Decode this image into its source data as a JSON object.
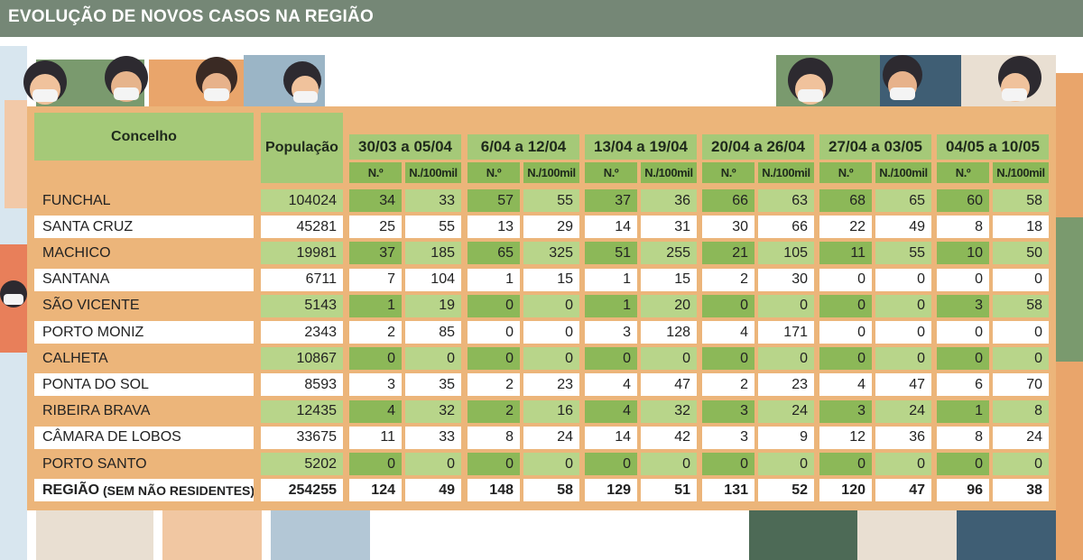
{
  "header": {
    "title": "EVOLUÇÃO DE NOVOS CASOS NA REGIÃO"
  },
  "table": {
    "col_concelho": "Concelho",
    "col_populacao": "População",
    "periods": [
      "30/03 a 05/04",
      "6/04 a 12/04",
      "13/04 a 19/04",
      "20/04 a 26/04",
      "27/04 a 03/05",
      "04/05 a 10/05"
    ],
    "sub_n": "N.º",
    "sub_rate": "N./100mil"
  },
  "chart_data": {
    "type": "table",
    "title": "EVOLUÇÃO DE NOVOS CASOS NA REGIÃO",
    "columns": [
      "Concelho",
      "População",
      "30/03 a 05/04 N.º",
      "30/03 a 05/04 N./100mil",
      "6/04 a 12/04 N.º",
      "6/04 a 12/04 N./100mil",
      "13/04 a 19/04 N.º",
      "13/04 a 19/04 N./100mil",
      "20/04 a 26/04 N.º",
      "20/04 a 26/04 N./100mil",
      "27/04 a 03/05 N.º",
      "27/04 a 03/05 N./100mil",
      "04/05 a 10/05 N.º",
      "04/05 a 10/05 N./100mil"
    ],
    "rows": [
      {
        "name": "FUNCHAL",
        "population": "104024",
        "values": [
          "34",
          "33",
          "57",
          "55",
          "37",
          "36",
          "66",
          "63",
          "68",
          "65",
          "60",
          "58"
        ]
      },
      {
        "name": "SANTA CRUZ",
        "population": "45281",
        "values": [
          "25",
          "55",
          "13",
          "29",
          "14",
          "31",
          "30",
          "66",
          "22",
          "49",
          "8",
          "18"
        ]
      },
      {
        "name": "MACHICO",
        "population": "19981",
        "values": [
          "37",
          "185",
          "65",
          "325",
          "51",
          "255",
          "21",
          "105",
          "11",
          "55",
          "10",
          "50"
        ]
      },
      {
        "name": "SANTANA",
        "population": "6711",
        "values": [
          "7",
          "104",
          "1",
          "15",
          "1",
          "15",
          "2",
          "30",
          "0",
          "0",
          "0",
          "0"
        ]
      },
      {
        "name": "SÃO VICENTE",
        "population": "5143",
        "values": [
          "1",
          "19",
          "0",
          "0",
          "1",
          "20",
          "0",
          "0",
          "0",
          "0",
          "3",
          "58"
        ]
      },
      {
        "name": "PORTO MONIZ",
        "population": "2343",
        "values": [
          "2",
          "85",
          "0",
          "0",
          "3",
          "128",
          "4",
          "171",
          "0",
          "0",
          "0",
          "0"
        ]
      },
      {
        "name": "CALHETA",
        "population": "10867",
        "values": [
          "0",
          "0",
          "0",
          "0",
          "0",
          "0",
          "0",
          "0",
          "0",
          "0",
          "0",
          "0"
        ]
      },
      {
        "name": "PONTA DO SOL",
        "population": "8593",
        "values": [
          "3",
          "35",
          "2",
          "23",
          "4",
          "47",
          "2",
          "23",
          "4",
          "47",
          "6",
          "70"
        ]
      },
      {
        "name": "RIBEIRA BRAVA",
        "population": "12435",
        "values": [
          "4",
          "32",
          "2",
          "16",
          "4",
          "32",
          "3",
          "24",
          "3",
          "24",
          "1",
          "8"
        ]
      },
      {
        "name": "CÂMARA DE LOBOS",
        "population": "33675",
        "values": [
          "11",
          "33",
          "8",
          "24",
          "14",
          "42",
          "3",
          "9",
          "12",
          "36",
          "8",
          "24"
        ]
      },
      {
        "name": "PORTO SANTO",
        "population": "5202",
        "values": [
          "0",
          "0",
          "0",
          "0",
          "0",
          "0",
          "0",
          "0",
          "0",
          "0",
          "0",
          "0"
        ]
      }
    ],
    "total": {
      "name_bold": "REGIÃO",
      "name_rest": " (SEM NÃO RESIDENTES)",
      "population": "254255",
      "values": [
        "124",
        "49",
        "148",
        "58",
        "129",
        "51",
        "131",
        "52",
        "120",
        "47",
        "96",
        "38"
      ]
    }
  },
  "colors": {
    "topbar": "#758776",
    "panel": "#ecb57a",
    "green_dark": "#8cb858",
    "green_light": "#b8d58a",
    "header_light": "#a5c978",
    "white": "#ffffff"
  }
}
